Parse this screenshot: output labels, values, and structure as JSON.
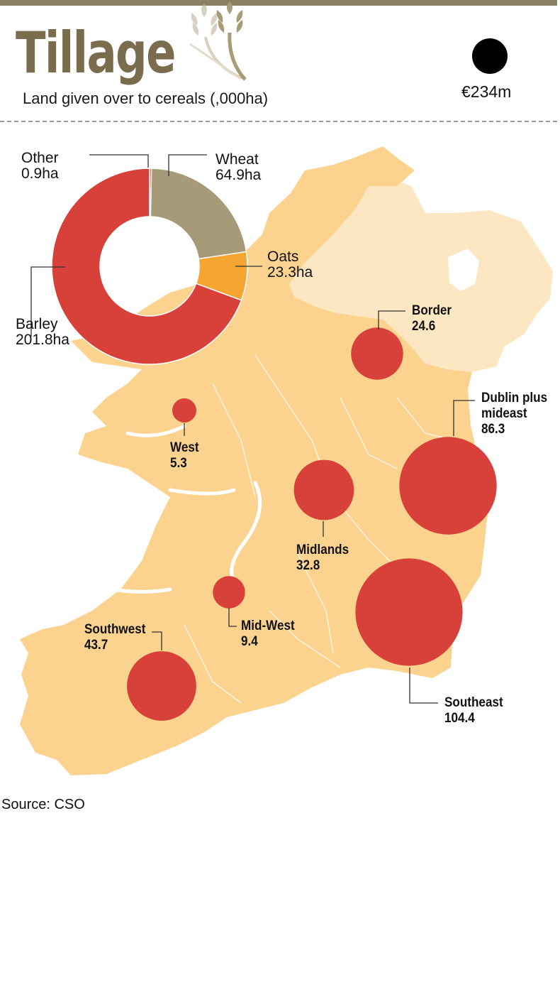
{
  "header": {
    "title": "Tillage",
    "subtitle": "Land given over to cereals (,000ha)",
    "legend_value": "€234m"
  },
  "colors": {
    "land": "#fbd38e",
    "northern_ireland": "#fde7c2",
    "bubble": "#d8403a",
    "barley": "#d8403a",
    "wheat": "#a69a79",
    "oats": "#f5a530",
    "other": "#d8403a",
    "title": "#7a6d4e"
  },
  "donut": {
    "segments": [
      {
        "name": "Barley",
        "value_label": "201.8ha",
        "value": 201.8,
        "color_key": "barley"
      },
      {
        "name": "Other",
        "value_label": "0.9ha",
        "value": 0.9,
        "color_key": "other"
      },
      {
        "name": "Wheat",
        "value_label": "64.9ha",
        "value": 64.9,
        "color_key": "wheat"
      },
      {
        "name": "Oats",
        "value_label": "23.3ha",
        "value": 23.3,
        "color_key": "oats"
      }
    ]
  },
  "regions": [
    {
      "name": "Border",
      "value": 24.6,
      "value_label": "24.6"
    },
    {
      "name": "West",
      "value": 5.3,
      "value_label": "5.3"
    },
    {
      "name": "Dublin plus mideast",
      "name_line1": "Dublin plus",
      "name_line2": "mideast",
      "value": 86.3,
      "value_label": "86.3"
    },
    {
      "name": "Midlands",
      "value": 32.8,
      "value_label": "32.8"
    },
    {
      "name": "Mid-West",
      "value": 9.4,
      "value_label": "9.4"
    },
    {
      "name": "Southwest",
      "value": 43.7,
      "value_label": "43.7"
    },
    {
      "name": "Southeast",
      "value": 104.4,
      "value_label": "104.4"
    }
  ],
  "source": "Source: CSO"
}
